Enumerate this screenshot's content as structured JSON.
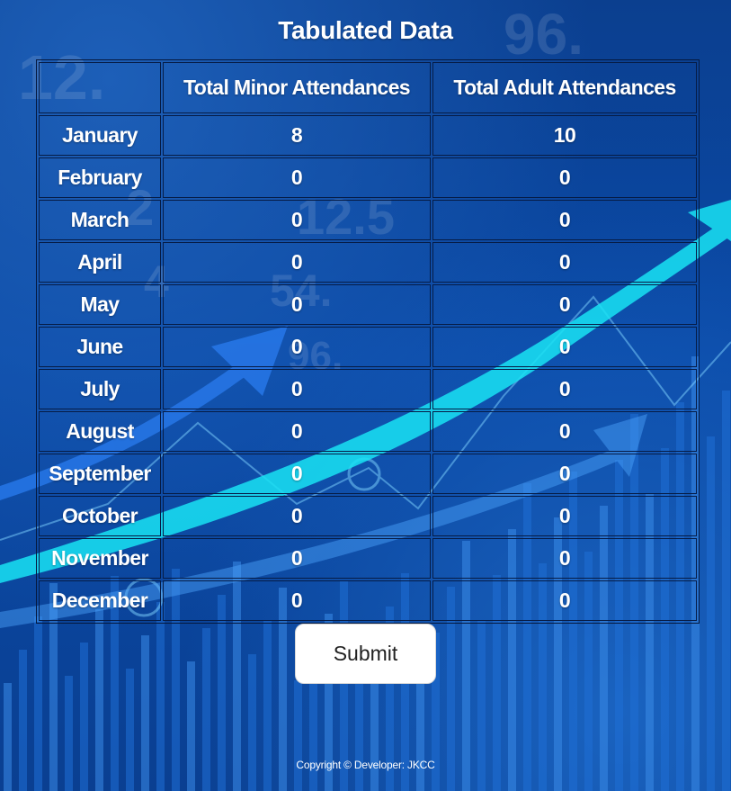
{
  "page": {
    "title": "Tabulated Data"
  },
  "table": {
    "headers": [
      "",
      "Total Minor Attendances",
      "Total Adult Attendances"
    ],
    "rows": [
      {
        "month": "January",
        "minor": "8",
        "adult": "10"
      },
      {
        "month": "February",
        "minor": "0",
        "adult": "0"
      },
      {
        "month": "March",
        "minor": "0",
        "adult": "0"
      },
      {
        "month": "April",
        "minor": "0",
        "adult": "0"
      },
      {
        "month": "May",
        "minor": "0",
        "adult": "0"
      },
      {
        "month": "June",
        "minor": "0",
        "adult": "0"
      },
      {
        "month": "July",
        "minor": "0",
        "adult": "0"
      },
      {
        "month": "August",
        "minor": "0",
        "adult": "0"
      },
      {
        "month": "September",
        "minor": "0",
        "adult": "0"
      },
      {
        "month": "October",
        "minor": "0",
        "adult": "0"
      },
      {
        "month": "November",
        "minor": "0",
        "adult": "0"
      },
      {
        "month": "December",
        "minor": "0",
        "adult": "0"
      }
    ]
  },
  "actions": {
    "submit_label": "Submit"
  },
  "footer": {
    "copyright": "Copyright © Developer: JKCC"
  },
  "theme": {
    "background": "#0b4aa8",
    "accent_cyan": "#19e3f3",
    "accent_blue": "#2a7cf0",
    "border": "#061c46",
    "button_bg": "#ffffff"
  }
}
